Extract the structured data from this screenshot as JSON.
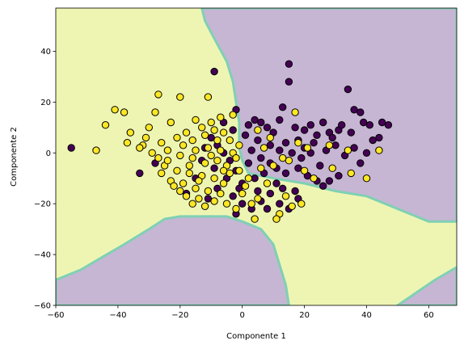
{
  "chart_data": {
    "type": "scatter",
    "title": "",
    "xlabel": "Componente 1",
    "ylabel": "Componente 2",
    "xlim": [
      -60,
      69
    ],
    "ylim": [
      -60,
      57
    ],
    "xticks": [
      -60,
      -40,
      -20,
      0,
      20,
      40,
      60
    ],
    "yticks": [
      -60,
      -40,
      -20,
      0,
      20,
      40
    ],
    "grid": false,
    "legend": "none",
    "colors": {
      "class_0_point": "#440154",
      "class_1_point": "#fde725",
      "class_0_region": "#c6b6d3",
      "class_1_region": "#eef5b3",
      "boundary": "#7fd0b4",
      "point_edge": "#000000"
    },
    "regions": [
      {
        "class": 0,
        "polygon": [
          [
            -13,
            57
          ],
          [
            69,
            57
          ],
          [
            69,
            -27
          ],
          [
            60,
            -27
          ],
          [
            50,
            -22
          ],
          [
            40,
            -17
          ],
          [
            30,
            -15
          ],
          [
            20,
            -12
          ],
          [
            10,
            -10
          ],
          [
            2,
            -8
          ],
          [
            0,
            -3
          ],
          [
            -1,
            2
          ],
          [
            -1,
            12
          ],
          [
            -2,
            20
          ],
          [
            -3,
            28
          ],
          [
            -5,
            36
          ],
          [
            -9,
            45
          ],
          [
            -12,
            52
          ]
        ]
      },
      {
        "class": 0,
        "polygon": [
          [
            -60,
            -50
          ],
          [
            -52,
            -46
          ],
          [
            -45,
            -41
          ],
          [
            -38,
            -36
          ],
          [
            -30,
            -30
          ],
          [
            -25,
            -26
          ],
          [
            -20,
            -25
          ],
          [
            -5,
            -25
          ],
          [
            0,
            -27
          ],
          [
            6,
            -30
          ],
          [
            10,
            -36
          ],
          [
            12,
            -44
          ],
          [
            14,
            -52
          ],
          [
            15,
            -60
          ],
          [
            -60,
            -60
          ]
        ]
      },
      {
        "class": 0,
        "polygon": [
          [
            69,
            -45
          ],
          [
            62,
            -50
          ],
          [
            56,
            -55
          ],
          [
            50,
            -60
          ],
          [
            69,
            -60
          ]
        ]
      }
    ],
    "series": [
      {
        "class": 0,
        "points": [
          [
            15,
            35
          ],
          [
            15,
            28
          ],
          [
            -9,
            32
          ],
          [
            34,
            25
          ],
          [
            13,
            18
          ],
          [
            36,
            17
          ],
          [
            38,
            16
          ],
          [
            -2,
            17
          ],
          [
            6,
            12
          ],
          [
            12,
            13
          ],
          [
            17,
            10
          ],
          [
            45,
            12
          ],
          [
            47,
            11
          ],
          [
            41,
            11
          ],
          [
            39,
            12
          ],
          [
            31,
            9
          ],
          [
            28,
            8
          ],
          [
            24,
            7
          ],
          [
            20,
            9
          ],
          [
            22,
            11
          ],
          [
            26,
            12
          ],
          [
            35,
            8
          ],
          [
            42,
            5
          ],
          [
            30,
            3
          ],
          [
            18,
            5
          ],
          [
            14,
            4
          ],
          [
            10,
            8
          ],
          [
            8,
            10
          ],
          [
            4,
            13
          ],
          [
            2,
            11
          ],
          [
            1,
            7
          ],
          [
            5,
            5
          ],
          [
            9,
            3
          ],
          [
            12,
            1
          ],
          [
            16,
            0
          ],
          [
            20,
            2
          ],
          [
            23,
            4
          ],
          [
            27,
            1
          ],
          [
            33,
            -1
          ],
          [
            36,
            2
          ],
          [
            40,
            0
          ],
          [
            44,
            6
          ],
          [
            3,
            1
          ],
          [
            6,
            -2
          ],
          [
            9,
            -4
          ],
          [
            11,
            -6
          ],
          [
            14,
            -8
          ],
          [
            18,
            -6
          ],
          [
            21,
            -9
          ],
          [
            24,
            -11
          ],
          [
            26,
            -13
          ],
          [
            28,
            -11
          ],
          [
            31,
            -9
          ],
          [
            7,
            -8
          ],
          [
            4,
            -10
          ],
          [
            0,
            -12
          ],
          [
            -2,
            -7
          ],
          [
            -4,
            -3
          ],
          [
            -6,
            0
          ],
          [
            -8,
            3
          ],
          [
            -10,
            6
          ],
          [
            -12,
            2
          ],
          [
            -5,
            -10
          ],
          [
            -8,
            -14
          ],
          [
            -3,
            -17
          ],
          [
            0,
            -20
          ],
          [
            -2,
            -24
          ],
          [
            3,
            -22
          ],
          [
            6,
            -19
          ],
          [
            9,
            -16
          ],
          [
            12,
            -20
          ],
          [
            15,
            -22
          ],
          [
            18,
            -18
          ],
          [
            -15,
            -10
          ],
          [
            -18,
            -16
          ],
          [
            -11,
            -18
          ],
          [
            -28,
            -4
          ],
          [
            -33,
            -8
          ],
          [
            -55,
            2
          ],
          [
            -3,
            9
          ],
          [
            -6,
            12
          ],
          [
            19,
            -2
          ],
          [
            25,
            -5
          ],
          [
            38,
            -4
          ],
          [
            13,
            -14
          ],
          [
            17,
            -15
          ],
          [
            2,
            -4
          ],
          [
            -1,
            -14
          ],
          [
            5,
            -15
          ],
          [
            8,
            -22
          ],
          [
            11,
            -12
          ],
          [
            22,
            0
          ],
          [
            29,
            6
          ],
          [
            32,
            11
          ],
          [
            -9,
            -6
          ],
          [
            -13,
            -3
          ]
        ]
      },
      {
        "class": 1,
        "points": [
          [
            -27,
            23
          ],
          [
            -20,
            22
          ],
          [
            -11,
            22
          ],
          [
            -41,
            17
          ],
          [
            -38,
            16
          ],
          [
            -28,
            16
          ],
          [
            -44,
            11
          ],
          [
            -36,
            8
          ],
          [
            -31,
            6
          ],
          [
            -37,
            4
          ],
          [
            -32,
            3
          ],
          [
            -26,
            4
          ],
          [
            -30,
            10
          ],
          [
            -23,
            12
          ],
          [
            -15,
            13
          ],
          [
            -7,
            14
          ],
          [
            -3,
            15
          ],
          [
            -18,
            8
          ],
          [
            -21,
            6
          ],
          [
            -16,
            5
          ],
          [
            -12,
            7
          ],
          [
            -9,
            9
          ],
          [
            -6,
            8
          ],
          [
            -4,
            5
          ],
          [
            -1,
            3
          ],
          [
            -19,
            3
          ],
          [
            -15,
            1
          ],
          [
            -11,
            2
          ],
          [
            -7,
            1
          ],
          [
            -3,
            0
          ],
          [
            -24,
            1
          ],
          [
            -20,
            -1
          ],
          [
            -16,
            -2
          ],
          [
            -12,
            -4
          ],
          [
            -8,
            -3
          ],
          [
            -5,
            -5
          ],
          [
            -1,
            -7
          ],
          [
            -25,
            -5
          ],
          [
            -21,
            -7
          ],
          [
            -17,
            -8
          ],
          [
            -13,
            -9
          ],
          [
            -9,
            -10
          ],
          [
            -6,
            -12
          ],
          [
            -23,
            -11
          ],
          [
            -19,
            -12
          ],
          [
            -15,
            -14
          ],
          [
            -11,
            -15
          ],
          [
            -7,
            -16
          ],
          [
            -18,
            -17
          ],
          [
            -14,
            -18
          ],
          [
            -9,
            -19
          ],
          [
            -22,
            -13
          ],
          [
            -26,
            -8
          ],
          [
            -17,
            -5
          ],
          [
            -47,
            1
          ],
          [
            -2,
            -22
          ],
          [
            5,
            -18
          ],
          [
            8,
            -12
          ],
          [
            10,
            -5
          ],
          [
            15,
            -3
          ],
          [
            20,
            -7
          ],
          [
            3,
            -20
          ],
          [
            0,
            -16
          ],
          [
            12,
            -24
          ],
          [
            11,
            -26
          ],
          [
            16,
            -21
          ],
          [
            19,
            -20
          ],
          [
            23,
            -10
          ],
          [
            29,
            -6
          ],
          [
            35,
            -8
          ],
          [
            40,
            -10
          ],
          [
            44,
            1
          ],
          [
            28,
            3
          ],
          [
            34,
            1
          ],
          [
            21,
            2
          ],
          [
            17,
            16
          ],
          [
            9,
            6
          ],
          [
            5,
            9
          ],
          [
            -29,
            0
          ],
          [
            -33,
            2
          ],
          [
            -14,
            -11
          ],
          [
            -10,
            -1
          ],
          [
            -4,
            -8
          ],
          [
            2,
            -10
          ],
          [
            6,
            -6
          ],
          [
            -2,
            -2
          ],
          [
            -20,
            -15
          ],
          [
            -24,
            -3
          ],
          [
            7,
            2
          ],
          [
            13,
            -2
          ],
          [
            18,
            4
          ],
          [
            -13,
            10
          ],
          [
            -10,
            12
          ],
          [
            -8,
            5
          ],
          [
            -27,
            -2
          ],
          [
            4,
            -26
          ],
          [
            -5,
            -20
          ],
          [
            1,
            -13
          ],
          [
            14,
            -17
          ],
          [
            -16,
            -20
          ],
          [
            -12,
            -21
          ],
          [
            -6,
            -7
          ]
        ]
      }
    ]
  }
}
